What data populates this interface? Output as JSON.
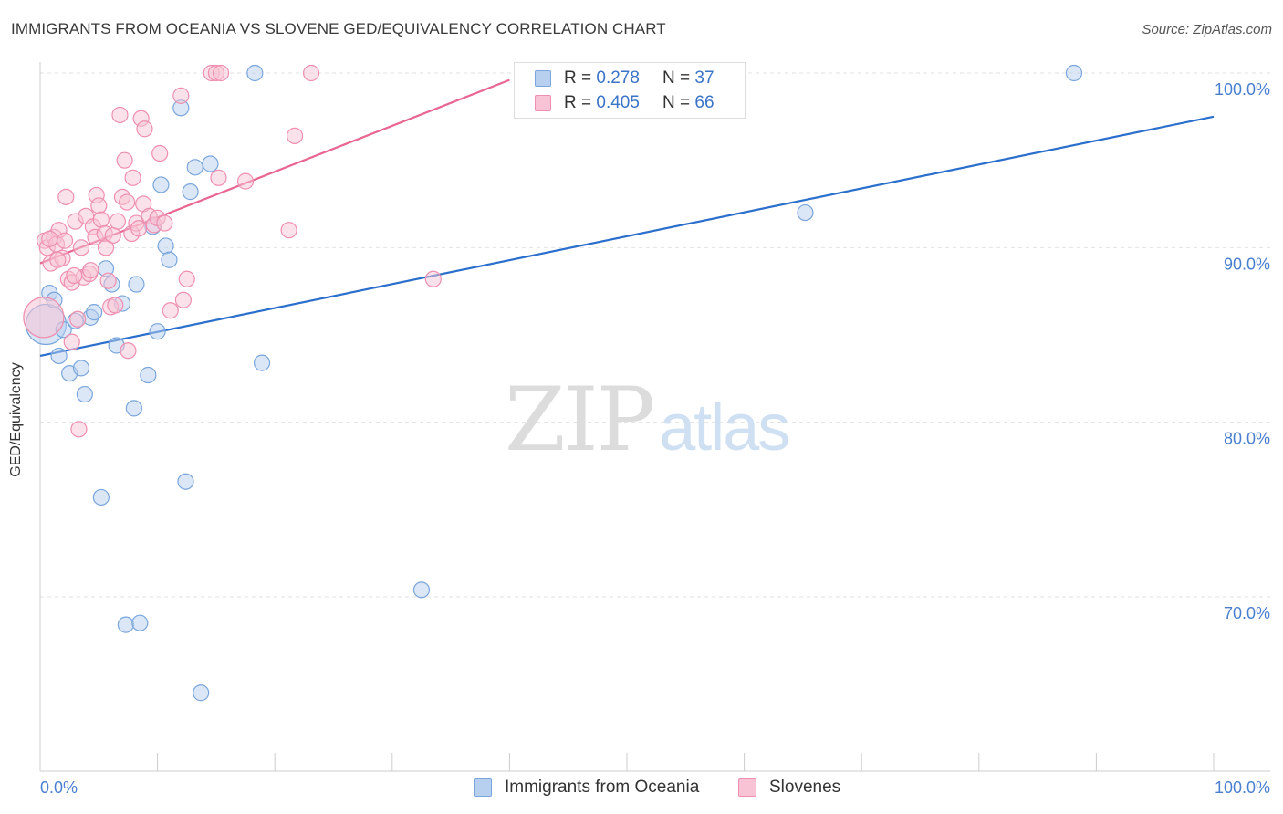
{
  "header": {
    "title": "IMMIGRANTS FROM OCEANIA VS SLOVENE GED/EQUIVALENCY CORRELATION CHART",
    "source": "Source: ZipAtlas.com"
  },
  "watermark": {
    "zip": "ZIP",
    "atlas": "atlas"
  },
  "legend": {
    "r_label": "R =",
    "n_label": "N =",
    "rows": [
      {
        "r": "0.278",
        "n": "37"
      },
      {
        "r": "0.405",
        "n": "66"
      }
    ]
  },
  "colors": {
    "blue_fill": "#b8d0f0",
    "blue_stroke": "#7aa6dc",
    "blue_line": "#2b6fcc",
    "pink_fill": "#f8c3d4",
    "pink_stroke": "#ee8fb0",
    "pink_line": "#e8668f",
    "tick_label": "#4a7fcf",
    "grid": "#e2e2e2"
  },
  "chart_data": {
    "type": "scatter",
    "title": "IMMIGRANTS FROM OCEANIA VS SLOVENE GED/EQUIVALENCY CORRELATION CHART",
    "xlabel": "",
    "ylabel": "GED/Equivalency",
    "xlim": [
      0,
      100
    ],
    "ylim": [
      60,
      101.5
    ],
    "x_tick_labels": [
      "0.0%",
      "100.0%"
    ],
    "y_ticks": [
      70,
      80,
      90,
      100
    ],
    "y_tick_labels": [
      "70.0%",
      "80.0%",
      "90.0%",
      "100.0%"
    ],
    "grid": true,
    "series": [
      {
        "name": "Immigrants from Oceania",
        "color": "blue",
        "r": 0.278,
        "n": 37,
        "trendline": {
          "x": [
            0,
            100
          ],
          "y": [
            83.8,
            97.5
          ]
        },
        "points": [
          {
            "x": 0.5,
            "y": 85.6,
            "big": true
          },
          {
            "x": 0.8,
            "y": 87.4
          },
          {
            "x": 1.2,
            "y": 87.0
          },
          {
            "x": 1.6,
            "y": 83.8
          },
          {
            "x": 2.0,
            "y": 85.3
          },
          {
            "x": 2.5,
            "y": 82.8
          },
          {
            "x": 3.0,
            "y": 85.8
          },
          {
            "x": 3.5,
            "y": 83.1
          },
          {
            "x": 3.8,
            "y": 81.6
          },
          {
            "x": 4.3,
            "y": 86.0
          },
          {
            "x": 4.6,
            "y": 86.3
          },
          {
            "x": 5.2,
            "y": 75.7
          },
          {
            "x": 5.6,
            "y": 88.8
          },
          {
            "x": 6.1,
            "y": 87.9
          },
          {
            "x": 6.5,
            "y": 84.4
          },
          {
            "x": 7.0,
            "y": 86.8
          },
          {
            "x": 7.3,
            "y": 68.4
          },
          {
            "x": 8.0,
            "y": 80.8
          },
          {
            "x": 8.2,
            "y": 87.9
          },
          {
            "x": 8.5,
            "y": 68.5
          },
          {
            "x": 9.2,
            "y": 82.7
          },
          {
            "x": 9.6,
            "y": 91.2
          },
          {
            "x": 10.0,
            "y": 85.2
          },
          {
            "x": 10.3,
            "y": 93.6
          },
          {
            "x": 10.7,
            "y": 90.1
          },
          {
            "x": 11.0,
            "y": 89.3
          },
          {
            "x": 12.0,
            "y": 98.0
          },
          {
            "x": 12.4,
            "y": 76.6
          },
          {
            "x": 12.8,
            "y": 93.2
          },
          {
            "x": 13.2,
            "y": 94.6
          },
          {
            "x": 13.7,
            "y": 64.5
          },
          {
            "x": 14.5,
            "y": 94.8
          },
          {
            "x": 18.3,
            "y": 100.0
          },
          {
            "x": 18.9,
            "y": 83.4
          },
          {
            "x": 32.5,
            "y": 70.4
          },
          {
            "x": 65.2,
            "y": 92.0
          },
          {
            "x": 88.1,
            "y": 100.0
          }
        ]
      },
      {
        "name": "Slovenes",
        "color": "pink",
        "r": 0.405,
        "n": 66,
        "trendline": {
          "x": [
            0,
            40
          ],
          "y": [
            89.1,
            99.6
          ]
        },
        "points": [
          {
            "x": 0.3,
            "y": 86.0,
            "big": true
          },
          {
            "x": 0.4,
            "y": 90.4
          },
          {
            "x": 0.6,
            "y": 90.0
          },
          {
            "x": 0.9,
            "y": 89.1
          },
          {
            "x": 1.2,
            "y": 90.6
          },
          {
            "x": 1.4,
            "y": 90.2
          },
          {
            "x": 1.6,
            "y": 91.0
          },
          {
            "x": 1.9,
            "y": 89.4
          },
          {
            "x": 2.1,
            "y": 90.4
          },
          {
            "x": 2.2,
            "y": 92.9
          },
          {
            "x": 2.4,
            "y": 88.2
          },
          {
            "x": 2.7,
            "y": 84.6
          },
          {
            "x": 2.7,
            "y": 88.0
          },
          {
            "x": 3.0,
            "y": 91.5
          },
          {
            "x": 3.2,
            "y": 85.9
          },
          {
            "x": 3.3,
            "y": 79.6
          },
          {
            "x": 3.5,
            "y": 90.0
          },
          {
            "x": 3.7,
            "y": 88.3
          },
          {
            "x": 3.9,
            "y": 91.8
          },
          {
            "x": 4.2,
            "y": 88.5
          },
          {
            "x": 4.3,
            "y": 88.7
          },
          {
            "x": 4.5,
            "y": 91.2
          },
          {
            "x": 4.7,
            "y": 90.6
          },
          {
            "x": 4.8,
            "y": 93.0
          },
          {
            "x": 5.0,
            "y": 92.4
          },
          {
            "x": 5.2,
            "y": 91.6
          },
          {
            "x": 5.5,
            "y": 90.8
          },
          {
            "x": 5.6,
            "y": 90.0
          },
          {
            "x": 5.8,
            "y": 88.1
          },
          {
            "x": 6.0,
            "y": 86.6
          },
          {
            "x": 6.2,
            "y": 90.7
          },
          {
            "x": 6.4,
            "y": 86.7
          },
          {
            "x": 6.6,
            "y": 91.5
          },
          {
            "x": 6.8,
            "y": 97.6
          },
          {
            "x": 7.0,
            "y": 92.9
          },
          {
            "x": 7.2,
            "y": 95.0
          },
          {
            "x": 7.4,
            "y": 92.6
          },
          {
            "x": 7.5,
            "y": 84.1
          },
          {
            "x": 7.8,
            "y": 90.8
          },
          {
            "x": 7.9,
            "y": 94.0
          },
          {
            "x": 8.2,
            "y": 91.4
          },
          {
            "x": 8.4,
            "y": 91.1
          },
          {
            "x": 8.6,
            "y": 97.4
          },
          {
            "x": 8.8,
            "y": 92.5
          },
          {
            "x": 8.9,
            "y": 96.8
          },
          {
            "x": 9.3,
            "y": 91.8
          },
          {
            "x": 9.7,
            "y": 91.3
          },
          {
            "x": 10.0,
            "y": 91.7
          },
          {
            "x": 10.2,
            "y": 95.4
          },
          {
            "x": 10.6,
            "y": 91.4
          },
          {
            "x": 11.1,
            "y": 86.4
          },
          {
            "x": 12.0,
            "y": 98.7
          },
          {
            "x": 12.2,
            "y": 87.0
          },
          {
            "x": 12.5,
            "y": 88.2
          },
          {
            "x": 14.6,
            "y": 100.0
          },
          {
            "x": 15.0,
            "y": 100.0
          },
          {
            "x": 15.2,
            "y": 94.0
          },
          {
            "x": 15.4,
            "y": 100.0
          },
          {
            "x": 17.5,
            "y": 93.8
          },
          {
            "x": 21.2,
            "y": 91.0
          },
          {
            "x": 21.7,
            "y": 96.4
          },
          {
            "x": 23.1,
            "y": 100.0
          },
          {
            "x": 33.5,
            "y": 88.2
          },
          {
            "x": 0.8,
            "y": 90.5
          },
          {
            "x": 1.5,
            "y": 89.3
          },
          {
            "x": 2.9,
            "y": 88.4
          }
        ]
      }
    ]
  }
}
